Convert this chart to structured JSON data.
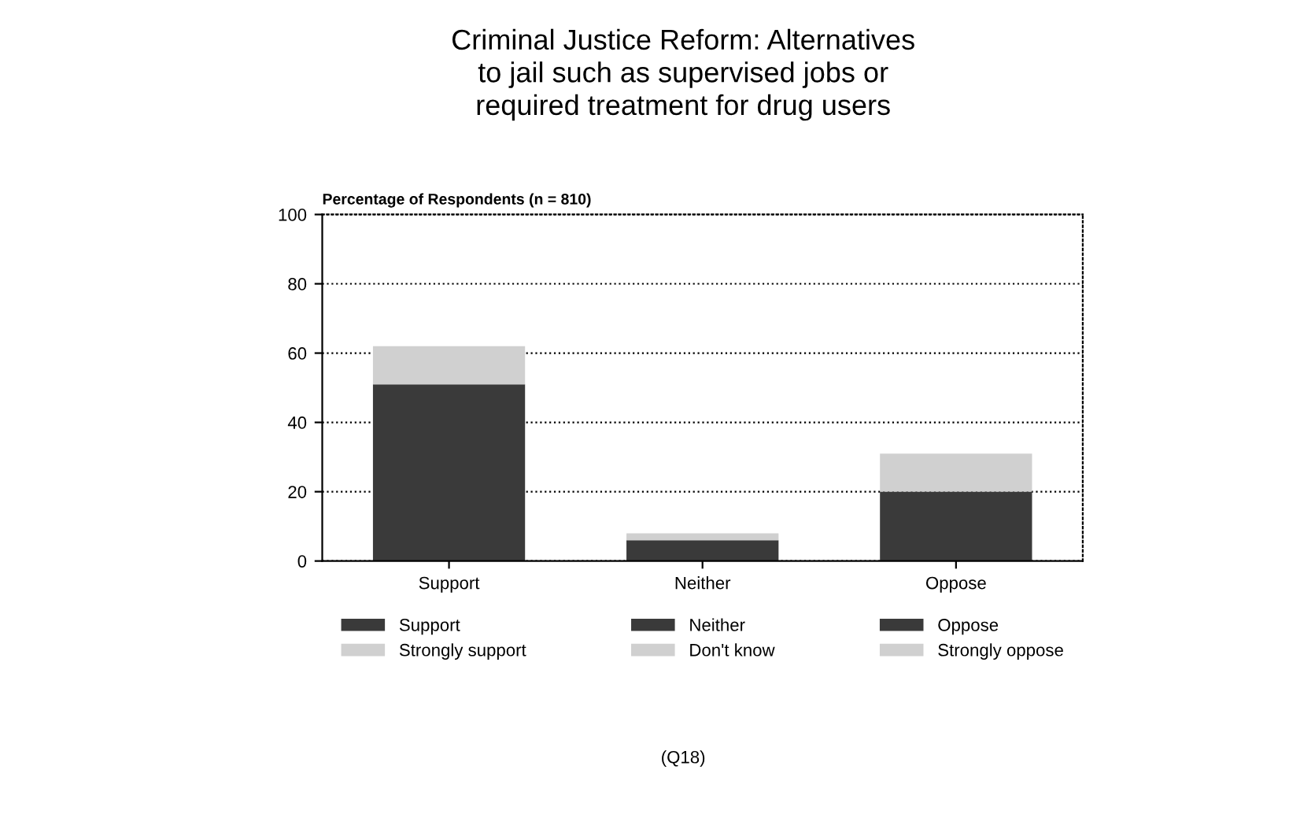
{
  "chart_data": {
    "type": "bar",
    "title": "Criminal Justice Reform: Alternatives\nto jail such as supervised jobs or\nrequired treatment for drug users",
    "ylabel": "Percentage of Respondents (n = 810)",
    "categories": [
      "Support",
      "Neither",
      "Oppose"
    ],
    "stacked": true,
    "series": [
      {
        "name": "Support",
        "color": "#3a3a3a",
        "values": [
          51,
          null,
          null
        ]
      },
      {
        "name": "Strongly support",
        "color": "#d0d0d0",
        "values": [
          11,
          null,
          null
        ]
      },
      {
        "name": "Neither",
        "color": "#3a3a3a",
        "values": [
          null,
          6,
          null
        ]
      },
      {
        "name": "Don't know",
        "color": "#d0d0d0",
        "values": [
          null,
          2,
          null
        ]
      },
      {
        "name": "Oppose",
        "color": "#3a3a3a",
        "values": [
          null,
          null,
          20
        ]
      },
      {
        "name": "Strongly oppose",
        "color": "#d0d0d0",
        "values": [
          null,
          null,
          11
        ]
      }
    ],
    "ylim": [
      0,
      100
    ],
    "yticks": [
      0,
      20,
      40,
      60,
      80,
      100
    ],
    "grid": "y",
    "legend": "bottom",
    "annotations": [
      "(Q18)"
    ]
  }
}
